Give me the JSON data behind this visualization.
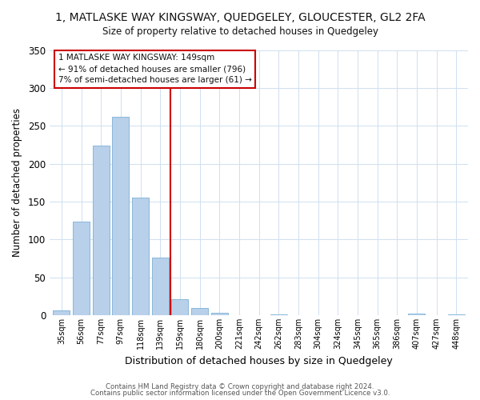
{
  "title_line1": "1, MATLASKE WAY KINGSWAY, QUEDGELEY, GLOUCESTER, GL2 2FA",
  "title_line2": "Size of property relative to detached houses in Quedgeley",
  "xlabel": "Distribution of detached houses by size in Quedgeley",
  "ylabel": "Number of detached properties",
  "bar_labels": [
    "35sqm",
    "56sqm",
    "77sqm",
    "97sqm",
    "118sqm",
    "139sqm",
    "159sqm",
    "180sqm",
    "200sqm",
    "221sqm",
    "242sqm",
    "262sqm",
    "283sqm",
    "304sqm",
    "324sqm",
    "345sqm",
    "365sqm",
    "386sqm",
    "407sqm",
    "427sqm",
    "448sqm"
  ],
  "bar_values": [
    6,
    124,
    224,
    262,
    155,
    76,
    21,
    9,
    3,
    0,
    0,
    1,
    0,
    0,
    0,
    0,
    0,
    0,
    2,
    0,
    1
  ],
  "bar_color": "#b8d0ea",
  "bar_edge_color": "#7aafd4",
  "vline_color": "#cc0000",
  "ylim": [
    0,
    350
  ],
  "yticks": [
    0,
    50,
    100,
    150,
    200,
    250,
    300,
    350
  ],
  "annotation_title": "1 MATLASKE WAY KINGSWAY: 149sqm",
  "annotation_line2": "← 91% of detached houses are smaller (796)",
  "annotation_line3": "7% of semi-detached houses are larger (61) →",
  "footer_line1": "Contains HM Land Registry data © Crown copyright and database right 2024.",
  "footer_line2": "Contains public sector information licensed under the Open Government Licence v3.0.",
  "background_color": "#ffffff",
  "plot_bg_color": "#ffffff",
  "grid_color": "#d0dff0"
}
